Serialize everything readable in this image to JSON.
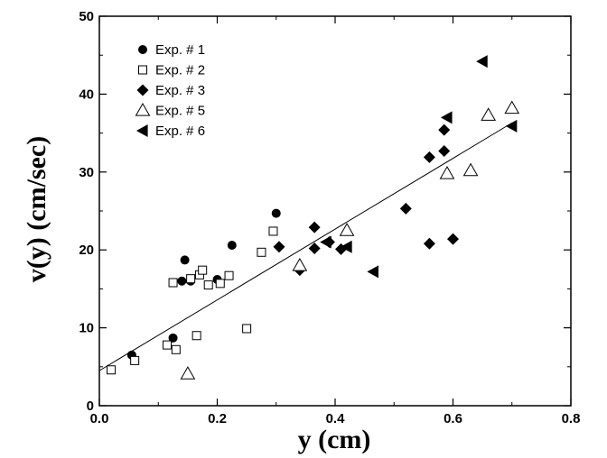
{
  "chart_data": {
    "type": "scatter",
    "title": "",
    "xlabel": "y  (cm)",
    "ylabel": "v(y)  (cm/sec)",
    "xlim": [
      0.0,
      0.8
    ],
    "ylim": [
      0,
      50
    ],
    "x_ticks": [
      "0.0",
      "0.2",
      "0.4",
      "0.6",
      "0.8"
    ],
    "y_ticks": [
      "0",
      "10",
      "20",
      "30",
      "40",
      "50"
    ],
    "grid": false,
    "legend_position": "top-left",
    "series": [
      {
        "name": "Exp. # 1",
        "marker": "filled-circle",
        "points": [
          [
            0.055,
            6.5
          ],
          [
            0.125,
            8.7
          ],
          [
            0.14,
            16.0
          ],
          [
            0.145,
            18.7
          ],
          [
            0.155,
            16.0
          ],
          [
            0.2,
            16.2
          ],
          [
            0.225,
            20.6
          ],
          [
            0.3,
            24.7
          ]
        ]
      },
      {
        "name": "Exp. # 2",
        "marker": "open-square",
        "points": [
          [
            0.02,
            4.6
          ],
          [
            0.06,
            5.8
          ],
          [
            0.115,
            7.8
          ],
          [
            0.125,
            15.8
          ],
          [
            0.13,
            7.2
          ],
          [
            0.155,
            16.3
          ],
          [
            0.165,
            9.0
          ],
          [
            0.17,
            16.8
          ],
          [
            0.175,
            17.4
          ],
          [
            0.185,
            15.5
          ],
          [
            0.205,
            15.7
          ],
          [
            0.22,
            16.7
          ],
          [
            0.25,
            9.9
          ],
          [
            0.275,
            19.7
          ],
          [
            0.295,
            22.4
          ]
        ]
      },
      {
        "name": "Exp. # 3",
        "marker": "filled-diamond",
        "points": [
          [
            0.305,
            20.4
          ],
          [
            0.34,
            17.4
          ],
          [
            0.365,
            22.9
          ],
          [
            0.365,
            20.2
          ],
          [
            0.39,
            21.0
          ],
          [
            0.41,
            20.1
          ],
          [
            0.52,
            25.3
          ],
          [
            0.56,
            31.9
          ],
          [
            0.56,
            20.8
          ],
          [
            0.585,
            35.4
          ],
          [
            0.585,
            32.7
          ],
          [
            0.6,
            21.4
          ]
        ]
      },
      {
        "name": "Exp. # 5",
        "marker": "open-triangle",
        "points": [
          [
            0.15,
            4.1
          ],
          [
            0.34,
            18.0
          ],
          [
            0.42,
            22.5
          ],
          [
            0.59,
            29.8
          ],
          [
            0.63,
            30.2
          ],
          [
            0.66,
            37.3
          ],
          [
            0.7,
            38.2
          ]
        ]
      },
      {
        "name": "Exp. # 6",
        "marker": "filled-left-triangle",
        "points": [
          [
            0.385,
            21.0
          ],
          [
            0.42,
            20.4
          ],
          [
            0.465,
            17.2
          ],
          [
            0.59,
            37.0
          ],
          [
            0.65,
            44.2
          ],
          [
            0.7,
            35.9
          ]
        ]
      }
    ],
    "fit_line": {
      "x": [
        0.0,
        0.7
      ],
      "y": [
        4.5,
        36.3
      ]
    }
  }
}
